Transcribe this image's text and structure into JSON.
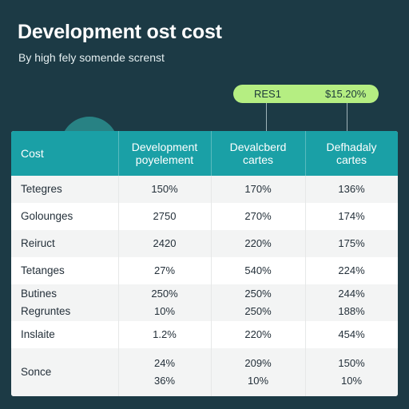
{
  "header": {
    "title": "Development ost cost",
    "subtitle": "By high fely somende screnst"
  },
  "legend": {
    "items": [
      "RES1",
      "$15.20%"
    ],
    "color": "#b5ee82"
  },
  "colors": {
    "background": "#1c3a45",
    "header": "#1aa0a6",
    "accent_circle": "#2a8f8f"
  },
  "chart_data": {
    "type": "table",
    "title": "Development ost cost",
    "subtitle": "By high fely somende screnst",
    "columns": [
      [
        "Cost"
      ],
      [
        "Development",
        "poyelement"
      ],
      [
        "Devalcberd",
        "cartes"
      ],
      [
        "Defhadaly",
        "cartes"
      ]
    ],
    "rows": [
      {
        "label": [
          "Tetegres"
        ],
        "values": [
          [
            "150%"
          ],
          [
            "170%"
          ],
          [
            "136%"
          ]
        ]
      },
      {
        "label": [
          "Golounges"
        ],
        "values": [
          [
            "2750"
          ],
          [
            "270%"
          ],
          [
            "174%"
          ]
        ]
      },
      {
        "label": [
          "Reiruct"
        ],
        "values": [
          [
            "2420"
          ],
          [
            "220%"
          ],
          [
            "175%"
          ]
        ]
      },
      {
        "label": [
          "Tetanges"
        ],
        "values": [
          [
            "27%"
          ],
          [
            "540%"
          ],
          [
            "224%"
          ]
        ]
      },
      {
        "label": [
          "Butines",
          "Regruntes"
        ],
        "values": [
          [
            "250%",
            "10%"
          ],
          [
            "250%",
            "250%"
          ],
          [
            "244%",
            "188%"
          ]
        ]
      },
      {
        "label": [
          "Inslaite"
        ],
        "values": [
          [
            "1.2%"
          ],
          [
            "220%"
          ],
          [
            "454%"
          ]
        ]
      },
      {
        "label": [
          "Sonce"
        ],
        "values": [
          [
            "24%",
            "36%"
          ],
          [
            "209%",
            "10%"
          ],
          [
            "150%",
            "10%"
          ]
        ]
      }
    ]
  }
}
